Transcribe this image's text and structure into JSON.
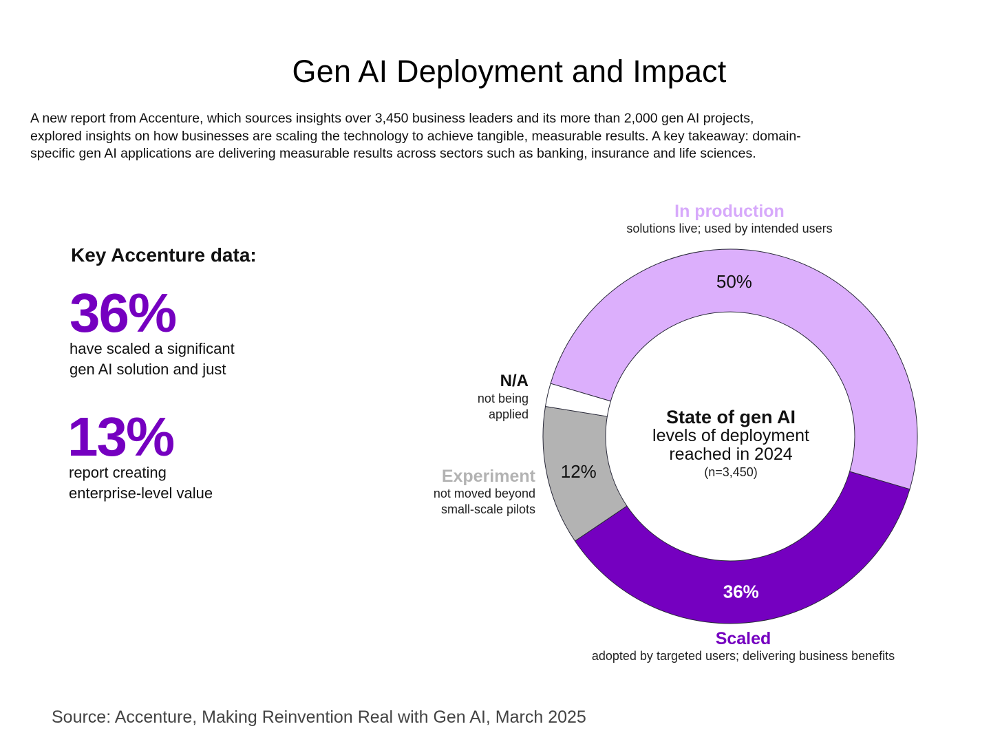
{
  "title": "Gen AI Deployment and Impact",
  "intro": [
    "A new report from Accenture, which sources insights over 3,450 business leaders and its more than 2,000  gen AI projects,",
    "explored insights on how businesses are scaling the technology to achieve tangible, measurable results. A key takeaway: domain-",
    "specific gen AI applications are delivering measurable results across sectors such as banking, insurance and life sciences."
  ],
  "key_data": {
    "heading": "Key Accenture data:",
    "stats": [
      {
        "value": "36%",
        "desc_lines": [
          "have scaled a significant",
          "gen AI solution and just"
        ]
      },
      {
        "value": "13%",
        "desc_lines": [
          "report creating",
          "enterprise-level value"
        ]
      }
    ]
  },
  "center": {
    "line1": "State of gen AI",
    "line2": "levels of deployment",
    "line3": "reached in 2024",
    "line4": "(n=3,450)"
  },
  "source": "Source: Accenture, Making Reinvention Real with Gen AI,  March 2025",
  "colors": {
    "in_production": "#dcaffc",
    "scaled": "#7500c0",
    "experiment": "#b3b3b3",
    "na": "#ffffff",
    "accent": "#7500c0"
  },
  "chart_data": {
    "type": "pie",
    "subtype": "donut",
    "title": "State of gen AI levels of deployment reached in 2024",
    "sample": "n=3,450",
    "slices": [
      {
        "key": "in_production",
        "name": "In production",
        "description": "solutions live; used by intended users",
        "value": 50,
        "label": "50%",
        "color": "#dcaffc",
        "label_color": "#111111"
      },
      {
        "key": "scaled",
        "name": "Scaled",
        "description": "adopted by targeted users; delivering business benefits",
        "value": 36,
        "label": "36%",
        "color": "#7500c0",
        "label_color": "#ffffff"
      },
      {
        "key": "experiment",
        "name": "Experiment",
        "description_lines": [
          "not moved beyond",
          "small-scale pilots"
        ],
        "value": 12,
        "label": "12%",
        "color": "#b3b3b3",
        "label_color": "#111111"
      },
      {
        "key": "na",
        "name": "N/A",
        "description_lines": [
          "not being",
          "applied"
        ],
        "value": 2,
        "label": "",
        "color": "#ffffff",
        "label_color": "#111111"
      }
    ]
  }
}
